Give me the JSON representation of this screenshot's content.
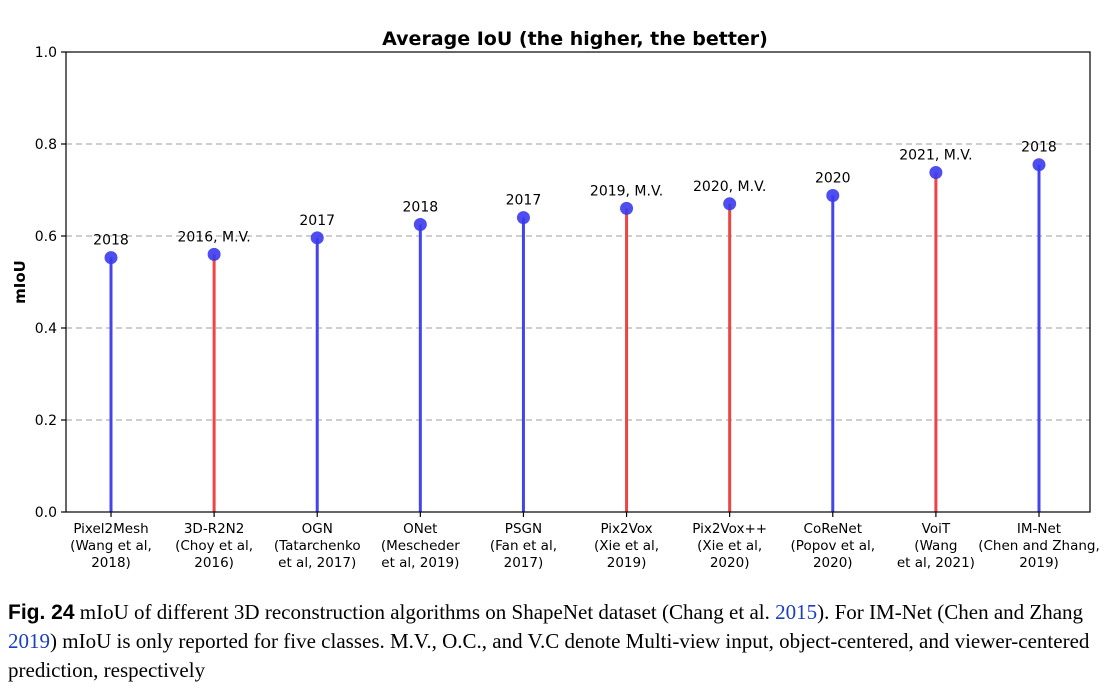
{
  "chart_data": {
    "type": "stem",
    "title": "Average IoU (the higher, the better)",
    "ylabel": "mIoU",
    "xlabel": "",
    "ylim": [
      0.0,
      1.0
    ],
    "yticks": [
      "0.0",
      "0.2",
      "0.4",
      "0.6",
      "0.8",
      "1.0"
    ],
    "grid": "horizontal dashed",
    "colors": {
      "single_view": "#4444ee",
      "multi_view": "#ee4444",
      "marker": "#3a3aee"
    },
    "points": [
      {
        "category": [
          "Pixel2Mesh",
          "(Wang et al,",
          "2018)"
        ],
        "value": 0.553,
        "label": "2018",
        "multi_view": false
      },
      {
        "category": [
          "3D-R2N2",
          "(Choy et al,",
          "2016)"
        ],
        "value": 0.56,
        "label": "2016, M.V.",
        "multi_view": true
      },
      {
        "category": [
          "OGN",
          "(Tatarchenko",
          "et al, 2017)"
        ],
        "value": 0.596,
        "label": "2017",
        "multi_view": false
      },
      {
        "category": [
          "ONet",
          "(Mescheder",
          "et al, 2019)"
        ],
        "value": 0.625,
        "label": "2018",
        "multi_view": false
      },
      {
        "category": [
          "PSGN",
          "(Fan et al,",
          "2017)"
        ],
        "value": 0.64,
        "label": "2017",
        "multi_view": false
      },
      {
        "category": [
          "Pix2Vox",
          "(Xie et al,",
          "2019)"
        ],
        "value": 0.66,
        "label": "2019, M.V.",
        "multi_view": true
      },
      {
        "category": [
          "Pix2Vox++",
          "(Xie et al,",
          "2020)"
        ],
        "value": 0.67,
        "label": "2020, M.V.",
        "multi_view": true
      },
      {
        "category": [
          "CoReNet",
          "(Popov et al,",
          "2020)"
        ],
        "value": 0.688,
        "label": "2020",
        "multi_view": false
      },
      {
        "category": [
          "VoiT",
          "(Wang",
          "et al, 2021)"
        ],
        "value": 0.738,
        "label": "2021, M.V.",
        "multi_view": true
      },
      {
        "category": [
          "IM-Net",
          "(Chen and Zhang,",
          "2019)"
        ],
        "value": 0.755,
        "label": "2018",
        "multi_view": false
      }
    ]
  },
  "caption": {
    "fig_label": "Fig. 24",
    "text_1": "mIoU of different 3D reconstruction algorithms on ShapeNet dataset (Chang et al.",
    "ref_1": "2015",
    "text_2": "). For IM-Net (Chen and Zhang",
    "ref_2": "2019",
    "text_3": ") mIoU is only reported for five classes. M.V., O.C., and V.C denote Multi-view input, object-centered, and viewer-centered prediction, respectively"
  }
}
